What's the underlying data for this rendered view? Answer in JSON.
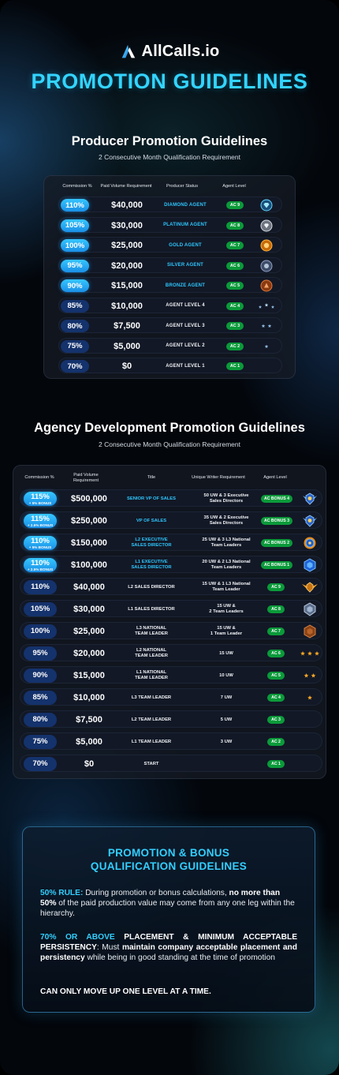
{
  "brand": "AllCalls.io",
  "title": "PROMOTION GUIDELINES",
  "producer": {
    "title": "Producer Promotion Guidelines",
    "subtitle": "2 Consecutive Month Qualification Requirement",
    "headers": [
      "Commission %",
      "Paid Volume Requirement",
      "Producer Status",
      "Agent Level"
    ],
    "rows": [
      {
        "commission": "110%",
        "volume": "$40,000",
        "status": "DIAMOND AGENT",
        "level": "AC 9",
        "icon": "diamond-badge-icon"
      },
      {
        "commission": "105%",
        "volume": "$30,000",
        "status": "PLATINUM AGENT",
        "level": "AC 8",
        "icon": "platinum-badge-icon"
      },
      {
        "commission": "100%",
        "volume": "$25,000",
        "status": "GOLD AGENT",
        "level": "AC 7",
        "icon": "gold-badge-icon"
      },
      {
        "commission": "95%",
        "volume": "$20,000",
        "status": "SILVER AGENT",
        "level": "AC 6",
        "icon": "silver-badge-icon"
      },
      {
        "commission": "90%",
        "volume": "$15,000",
        "status": "BRONZE AGENT",
        "level": "AC 5",
        "icon": "bronze-badge-icon"
      },
      {
        "commission": "85%",
        "volume": "$10,000",
        "status": "AGENT LEVEL 4",
        "level": "AC 4",
        "icon": "three-stars-icon"
      },
      {
        "commission": "80%",
        "volume": "$7,500",
        "status": "AGENT LEVEL 3",
        "level": "AC 3",
        "icon": "two-stars-icon"
      },
      {
        "commission": "75%",
        "volume": "$5,000",
        "status": "AGENT LEVEL 2",
        "level": "AC 2",
        "icon": "one-star-icon"
      },
      {
        "commission": "70%",
        "volume": "$0",
        "status": "AGENT LEVEL 1",
        "level": "AC 1",
        "icon": ""
      }
    ]
  },
  "agency": {
    "title": "Agency Development Promotion Guidelines",
    "subtitle": "2 Consecutive Month Qualification Requirement",
    "headers": [
      "Commission %",
      "Paid Volume Requirement",
      "Title",
      "Unique Writer Requirement",
      "Agent Level"
    ],
    "rows": [
      {
        "commission": "115%",
        "bonus": "+ 5% BONUS",
        "volume": "$500,000",
        "title": "SENIOR VP OF SALES",
        "req": "50 UW & 3 Executive\nSales Directors",
        "level": "AC BONUS 4",
        "icon": "winged-crest-icon"
      },
      {
        "commission": "115%",
        "bonus": "+ 2.5% BONUS",
        "volume": "$250,000",
        "title": "VP OF SALES",
        "req": "35 UW & 2 Executive\nSales Directors",
        "level": "AC BONUS 3",
        "icon": "winged-crest-icon"
      },
      {
        "commission": "110%",
        "bonus": "+ 5% BONUS",
        "volume": "$150,000",
        "title": "L2 EXECUTIVE\nSALES DIRECTOR",
        "req": "25 UW & 3 L3 National\nTeam Leaders",
        "level": "AC BONUS 2",
        "icon": "gear-crest-icon"
      },
      {
        "commission": "110%",
        "bonus": "+ 2.5% BONUS",
        "volume": "$100,000",
        "title": "L1 EXECUTIVE\nSALES DIRECTOR",
        "req": "20 UW & 2 L3 National\nTeam Leaders",
        "level": "AC BONUS 1",
        "icon": "hex-crest-icon"
      },
      {
        "commission": "110%",
        "bonus": "",
        "volume": "$40,000",
        "title": "L2  SALES DIRECTOR",
        "req": "15 UW & 1 L3 National\nTeam Leader",
        "level": "AC 9",
        "icon": "gold-wings-icon"
      },
      {
        "commission": "105%",
        "bonus": "",
        "volume": "$30,000",
        "title": "L1  SALES DIRECTOR",
        "req": "15 UW &\n2 Team Leaders",
        "level": "AC 8",
        "icon": "silver-shield-icon"
      },
      {
        "commission": "100%",
        "bonus": "",
        "volume": "$25,000",
        "title": "L3  NATIONAL\nTEAM LEADER",
        "req": "15 UW &\n1 Team Leader",
        "level": "AC 7",
        "icon": "bronze-hex-icon"
      },
      {
        "commission": "95%",
        "bonus": "",
        "volume": "$20,000",
        "title": "L2  NATIONAL\nTEAM LEADER",
        "req": "15 UW",
        "level": "AC 6",
        "icon": "three-gold-stars-icon"
      },
      {
        "commission": "90%",
        "bonus": "",
        "volume": "$15,000",
        "title": "L1  NATIONAL\nTEAM LEADER",
        "req": "10 UW",
        "level": "AC 5",
        "icon": "two-gold-stars-icon"
      },
      {
        "commission": "85%",
        "bonus": "",
        "volume": "$10,000",
        "title": "L3 TEAM LEADER",
        "req": "7 UW",
        "level": "AC 4",
        "icon": "one-gold-star-icon"
      },
      {
        "commission": "80%",
        "bonus": "",
        "volume": "$7,500",
        "title": "L2 TEAM LEADER",
        "req": "5 UW",
        "level": "AC 3",
        "icon": ""
      },
      {
        "commission": "75%",
        "bonus": "",
        "volume": "$5,000",
        "title": "L1 TEAM LEADER",
        "req": "3 UW",
        "level": "AC 2",
        "icon": ""
      },
      {
        "commission": "70%",
        "bonus": "",
        "volume": "$0",
        "title": "START",
        "req": "",
        "level": "AC 1",
        "icon": ""
      }
    ]
  },
  "guidelines": {
    "title_line1": "PROMOTION & BONUS",
    "title_line2": "QUALIFICATION GUIDELINES",
    "rule1_label": "50% RULE:",
    "rule1_text_a": " During promotion or bonus calculations, ",
    "rule1_bold": "no more than 50%",
    "rule1_text_b": " of the paid production value may come from any one leg within the hierarchy.",
    "rule2_label": "70% OR ABOVE",
    "rule2_bold_a": " PLACEMENT & MINIMUM ACCEPTABLE PERSISTENCY",
    "rule2_text_a": ": Must ",
    "rule2_bold_b": "maintain company acceptable placement and persistency",
    "rule2_text_b": " while being in good standing at the time of promotion",
    "rule3": "CAN ONLY MOVE UP ONE LEVEL AT A TIME.",
    "colors": {
      "accent": "#33cfff",
      "pill_bright": "#1a8fe6",
      "pill_dark": "#14326c",
      "level_green": "#0b9a3a"
    }
  }
}
